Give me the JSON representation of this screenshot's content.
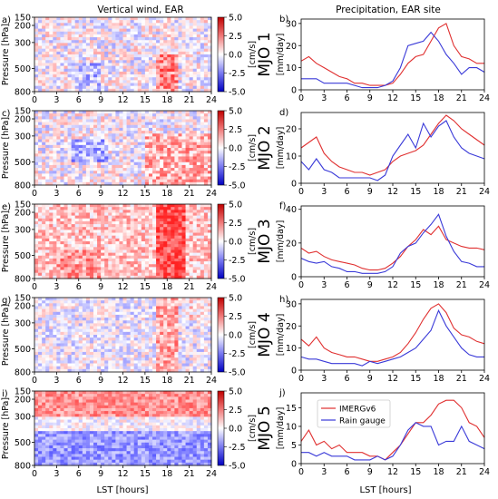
{
  "figure": {
    "left_title": "Vertical wind, EAR",
    "right_title": "Precipitation, EAR site",
    "xlabel": "LST [hours]",
    "colorbar": {
      "unit": "[cm/s]",
      "ticks": [
        "5.0",
        "2.5",
        "0.0",
        "-2.5",
        "-5.0"
      ]
    },
    "heatmap_ylabel": "Pressure [hPa]",
    "heatmap_yticks": [
      "150",
      "200",
      "300",
      "500",
      "800"
    ],
    "xticks": [
      "0",
      "3",
      "6",
      "9",
      "12",
      "15",
      "18",
      "21",
      "24"
    ],
    "precip_ylabel": "[mm/day]",
    "legend": [
      "IMERGv6",
      "Rain gauge"
    ],
    "colors": {
      "imerg": "#e03030",
      "gauge": "#3a3ad8",
      "pos": "#d62020",
      "neg": "#2030d0"
    }
  },
  "chart_data": [
    {
      "type": "heatmap",
      "panel": "a)",
      "phase_label": "MJO 1",
      "x_range": [
        0,
        24
      ],
      "y_range": [
        150,
        800
      ],
      "z_range": [
        -5,
        5
      ],
      "pattern": "mixed weak positive/negative at all levels; stronger positive near 500-800 hPa around 17-19 LST"
    },
    {
      "type": "line",
      "panel": "b)",
      "ylim": [
        0,
        32
      ],
      "yticks": [
        0,
        10,
        20,
        30
      ],
      "series": [
        {
          "name": "IMERGv6",
          "x": [
            0,
            1,
            2,
            3,
            4,
            5,
            6,
            7,
            8,
            9,
            10,
            11,
            12,
            13,
            14,
            15,
            16,
            17,
            18,
            19,
            20,
            21,
            22,
            23,
            24
          ],
          "values": [
            13,
            15,
            12,
            10,
            8,
            6,
            5,
            3,
            3,
            2,
            2,
            2,
            3,
            7,
            12,
            15,
            16,
            22,
            28,
            30,
            20,
            15,
            14,
            12,
            12
          ]
        },
        {
          "name": "Rain gauge",
          "x": [
            0,
            1,
            2,
            3,
            4,
            5,
            6,
            7,
            8,
            9,
            10,
            11,
            12,
            13,
            14,
            15,
            16,
            17,
            18,
            19,
            20,
            21,
            22,
            23,
            24
          ],
          "values": [
            5,
            5,
            5,
            3,
            3,
            3,
            3,
            2,
            1,
            1,
            1,
            2,
            4,
            10,
            20,
            21,
            22,
            26,
            22,
            16,
            12,
            7,
            10,
            10,
            8
          ]
        }
      ]
    },
    {
      "type": "heatmap",
      "panel": "c)",
      "phase_label": "MJO 2",
      "x_range": [
        0,
        24
      ],
      "y_range": [
        150,
        800
      ],
      "z_range": [
        -5,
        5
      ],
      "pattern": "mixed; negative near 500 hPa around 6-9 LST, positive 300-800 hPa after 15 LST"
    },
    {
      "type": "line",
      "panel": "d)",
      "ylim": [
        0,
        26
      ],
      "yticks": [
        0,
        10,
        20
      ],
      "series": [
        {
          "name": "IMERGv6",
          "x": [
            0,
            1,
            2,
            3,
            4,
            5,
            6,
            7,
            8,
            9,
            10,
            11,
            12,
            13,
            14,
            15,
            16,
            17,
            18,
            19,
            20,
            21,
            22,
            23,
            24
          ],
          "values": [
            13,
            15,
            17,
            11,
            8,
            6,
            5,
            4,
            4,
            3,
            4,
            5,
            8,
            10,
            11,
            12,
            14,
            18,
            22,
            25,
            23,
            20,
            18,
            16,
            14
          ]
        },
        {
          "name": "Rain gauge",
          "x": [
            0,
            1,
            2,
            3,
            4,
            5,
            6,
            7,
            8,
            9,
            10,
            11,
            12,
            13,
            14,
            15,
            16,
            17,
            18,
            19,
            20,
            21,
            22,
            23,
            24
          ],
          "values": [
            8,
            5,
            9,
            5,
            4,
            2,
            2,
            2,
            2,
            2,
            1,
            3,
            10,
            14,
            18,
            13,
            22,
            17,
            21,
            23,
            17,
            13,
            11,
            10,
            9
          ]
        }
      ]
    },
    {
      "type": "heatmap",
      "panel": "e)",
      "phase_label": "MJO 3",
      "x_range": [
        0,
        24
      ],
      "y_range": [
        150,
        800
      ],
      "z_range": [
        -5,
        5
      ],
      "pattern": "mostly positive; strongest positive 200-800 hPa around 17-20 LST"
    },
    {
      "type": "line",
      "panel": "f)",
      "ylim": [
        0,
        42
      ],
      "yticks": [
        0,
        20,
        40
      ],
      "series": [
        {
          "name": "IMERGv6",
          "x": [
            0,
            1,
            2,
            3,
            4,
            5,
            6,
            7,
            8,
            9,
            10,
            11,
            12,
            13,
            14,
            15,
            16,
            17,
            18,
            19,
            20,
            21,
            22,
            23,
            24
          ],
          "values": [
            17,
            14,
            15,
            12,
            10,
            9,
            8,
            7,
            5,
            4,
            4,
            5,
            8,
            12,
            18,
            22,
            28,
            25,
            30,
            22,
            20,
            18,
            17,
            17,
            16
          ]
        },
        {
          "name": "Rain gauge",
          "x": [
            0,
            1,
            2,
            3,
            4,
            5,
            6,
            7,
            8,
            9,
            10,
            11,
            12,
            13,
            14,
            15,
            16,
            17,
            18,
            19,
            20,
            21,
            22,
            23,
            24
          ],
          "values": [
            11,
            9,
            8,
            9,
            6,
            5,
            3,
            3,
            2,
            2,
            2,
            3,
            6,
            14,
            18,
            20,
            26,
            31,
            37,
            24,
            15,
            9,
            8,
            6,
            6
          ]
        }
      ]
    },
    {
      "type": "heatmap",
      "panel": "g)",
      "phase_label": "MJO 4",
      "x_range": [
        0,
        24
      ],
      "y_range": [
        150,
        800
      ],
      "z_range": [
        -5,
        5
      ],
      "pattern": "weak mixed; positive column around 17-19 LST"
    },
    {
      "type": "line",
      "panel": "h)",
      "ylim": [
        0,
        32
      ],
      "yticks": [
        0,
        10,
        20,
        30
      ],
      "series": [
        {
          "name": "IMERGv6",
          "x": [
            0,
            1,
            2,
            3,
            4,
            5,
            6,
            7,
            8,
            9,
            10,
            11,
            12,
            13,
            14,
            15,
            16,
            17,
            18,
            19,
            20,
            21,
            22,
            23,
            24
          ],
          "values": [
            14,
            11,
            15,
            10,
            8,
            7,
            6,
            6,
            5,
            4,
            4,
            5,
            6,
            8,
            12,
            17,
            23,
            28,
            30,
            26,
            19,
            16,
            15,
            13,
            12
          ]
        },
        {
          "name": "Rain gauge",
          "x": [
            0,
            1,
            2,
            3,
            4,
            5,
            6,
            7,
            8,
            9,
            10,
            11,
            12,
            13,
            14,
            15,
            16,
            17,
            18,
            19,
            20,
            21,
            22,
            23,
            24
          ],
          "values": [
            6,
            5,
            5,
            4,
            3,
            3,
            3,
            3,
            2,
            4,
            3,
            4,
            5,
            6,
            8,
            10,
            14,
            18,
            27,
            20,
            15,
            10,
            7,
            6,
            6
          ]
        }
      ]
    },
    {
      "type": "heatmap",
      "panel": "i)",
      "phase_label": "MJO 5",
      "x_range": [
        0,
        24
      ],
      "y_range": [
        150,
        800
      ],
      "z_range": [
        -5,
        5
      ],
      "pattern": "positive in upper levels (150-300 hPa), negative in lower levels (500-800 hPa)"
    },
    {
      "type": "line",
      "panel": "j)",
      "ylim": [
        0,
        19
      ],
      "yticks": [
        0,
        5,
        10,
        15
      ],
      "series": [
        {
          "name": "IMERGv6",
          "x": [
            0,
            1,
            2,
            3,
            4,
            5,
            6,
            7,
            8,
            9,
            10,
            11,
            12,
            13,
            14,
            15,
            16,
            17,
            18,
            19,
            20,
            21,
            22,
            23,
            24
          ],
          "values": [
            6,
            9,
            5,
            6,
            4,
            5,
            3,
            3,
            3,
            2,
            2,
            1,
            3,
            5,
            8,
            11,
            11,
            13,
            16,
            17,
            17,
            15,
            11,
            10,
            7
          ]
        },
        {
          "name": "Rain gauge",
          "x": [
            0,
            1,
            2,
            3,
            4,
            5,
            6,
            7,
            8,
            9,
            10,
            11,
            12,
            13,
            14,
            15,
            16,
            17,
            18,
            19,
            20,
            21,
            22,
            23,
            24
          ],
          "values": [
            3,
            3,
            2,
            3,
            2,
            2,
            2,
            1,
            1,
            1,
            2,
            1,
            2,
            5,
            9,
            11,
            10,
            10,
            5,
            6,
            6,
            10,
            6,
            5,
            4
          ]
        }
      ]
    }
  ]
}
